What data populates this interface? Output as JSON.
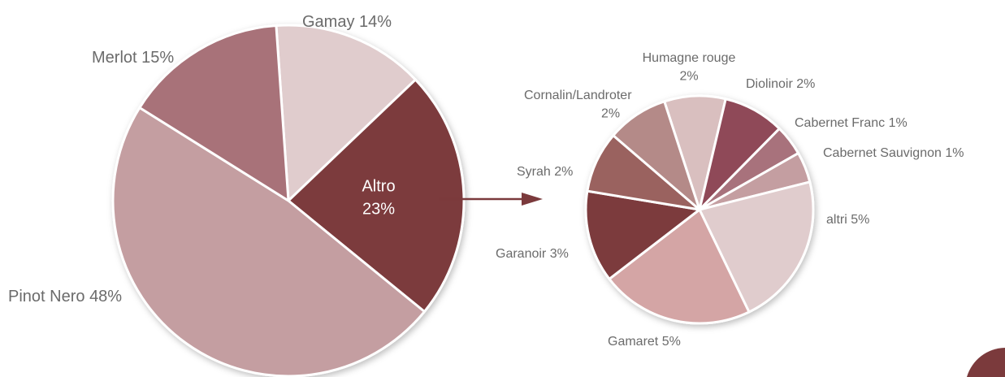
{
  "chart_data": [
    {
      "type": "pie",
      "categories": [
        "Gamay",
        "Altro",
        "Pinot Nero",
        "Merlot"
      ],
      "values": [
        14,
        23,
        48,
        15
      ],
      "value_labels": [
        "14%",
        "23%",
        "48%",
        "15%"
      ],
      "colors": [
        "#e0cccd",
        "#7b3a3c",
        "#c49ea1",
        "#a87279"
      ]
    },
    {
      "type": "pie",
      "categories": [
        "Humagne rouge",
        "Diolinoir",
        "Cabernet Franc",
        "Cabernet Sauvignon",
        "altri",
        "Gamaret",
        "Garanoir",
        "Syrah",
        "Cornalin/Landroter"
      ],
      "values": [
        2,
        2,
        1,
        1,
        5,
        5,
        3,
        2,
        2
      ],
      "value_labels": [
        "2%",
        "2%",
        "1%",
        "1%",
        "5%",
        "5%",
        "3%",
        "2%",
        "2%"
      ],
      "colors": [
        "#d9bfbf",
        "#8f4a59",
        "#a8727b",
        "#c49ea1",
        "#e0cccd",
        "#d4a5a5",
        "#7b3a3c",
        "#9a625f",
        "#b48a88"
      ]
    }
  ]
}
